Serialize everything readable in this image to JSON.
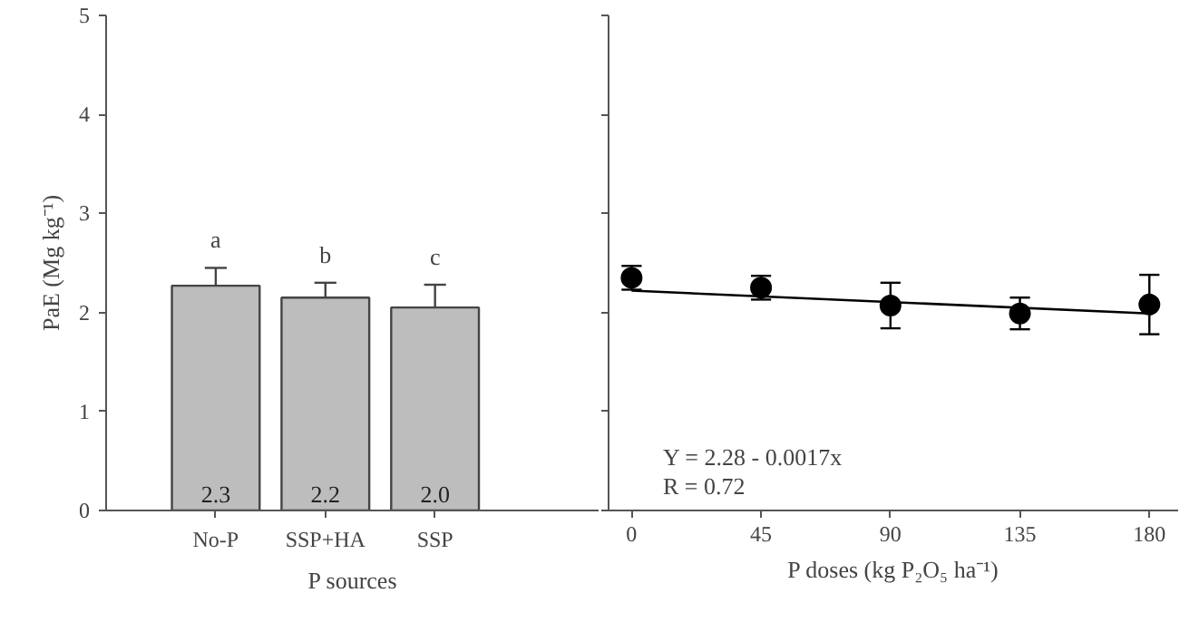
{
  "chart_data": [
    {
      "type": "bar",
      "xlabel": "P sources",
      "ylabel": "PaE (Mg kg⁻¹)",
      "categories": [
        "No-P",
        "SSP+HA",
        "SSP"
      ],
      "values": [
        2.27,
        2.15,
        2.05
      ],
      "errors": [
        [
          2.27,
          2.45
        ],
        [
          2.15,
          2.3
        ],
        [
          2.05,
          2.28
        ]
      ],
      "color": "#bdbdbd",
      "value_labels": [
        "2.3",
        "2.2",
        "2.0"
      ],
      "ylim": [
        0,
        5
      ],
      "yticks": [
        0,
        1,
        2,
        3,
        4,
        5
      ],
      "grid": false,
      "annotations": [
        "a",
        "b",
        "c"
      ]
    },
    {
      "type": "scatter",
      "xlabel": "P doses (kg P₂O₅ ha⁻¹)",
      "x": [
        0,
        45,
        90,
        135,
        180
      ],
      "grid": false,
      "tick_labels": "x",
      "series": [
        {
          "type": "scatter",
          "marker": "circle",
          "color": "#000000",
          "values": [
            2.35,
            2.25,
            2.07,
            1.99,
            2.08
          ],
          "errors": [
            0.12,
            0.12,
            0.23,
            0.16,
            0.3
          ]
        },
        {
          "type": "line",
          "color": "#000000",
          "x": [
            0,
            180
          ],
          "values": [
            2.22,
            1.99
          ]
        }
      ],
      "xlim": [
        -8,
        190
      ],
      "xticks": [
        0,
        45,
        90,
        135,
        180
      ],
      "ylim": [
        0,
        5
      ],
      "yticks": [
        0,
        1,
        2,
        3,
        4,
        5
      ],
      "annotations": [
        "Y = 2.28 - 0.0017x",
        "R  =  0.72"
      ]
    }
  ]
}
